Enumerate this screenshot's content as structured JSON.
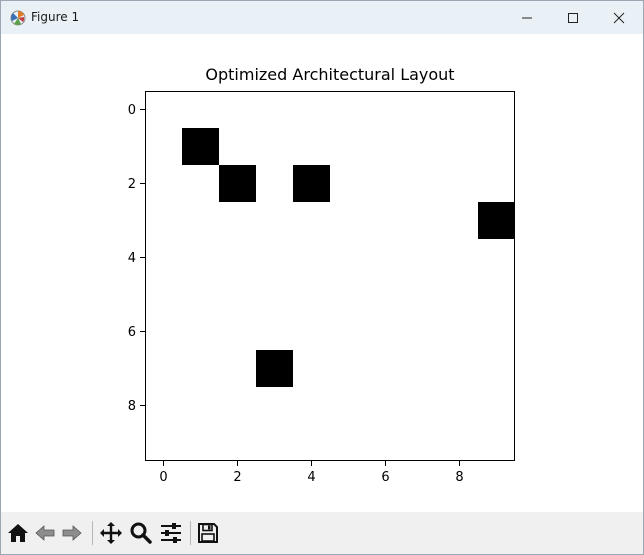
{
  "window": {
    "title": "Figure 1",
    "controls": {
      "minimize": "minimize",
      "maximize": "maximize",
      "close": "close"
    }
  },
  "toolbar": {
    "buttons": [
      "home-icon",
      "back-arrow-icon",
      "forward-arrow-icon",
      "pan-icon",
      "zoom-icon",
      "configure-subplots-icon",
      "save-icon"
    ]
  },
  "chart_data": {
    "type": "heatmap",
    "title": "Optimized Architectural Layout",
    "xlabel": "",
    "ylabel": "",
    "xlim": [
      -0.5,
      9.5
    ],
    "ylim": [
      9.5,
      -0.5
    ],
    "grid_size": [
      10,
      10
    ],
    "colormap": "binary",
    "xticks": [
      0,
      2,
      4,
      6,
      8
    ],
    "yticks": [
      0,
      2,
      4,
      6,
      8
    ],
    "filled_cells": [
      {
        "x": 1,
        "y": 1
      },
      {
        "x": 2,
        "y": 2
      },
      {
        "x": 4,
        "y": 2
      },
      {
        "x": 9,
        "y": 3
      },
      {
        "x": 3,
        "y": 7
      }
    ],
    "fill_color": "#000000",
    "background_color": "#ffffff"
  }
}
